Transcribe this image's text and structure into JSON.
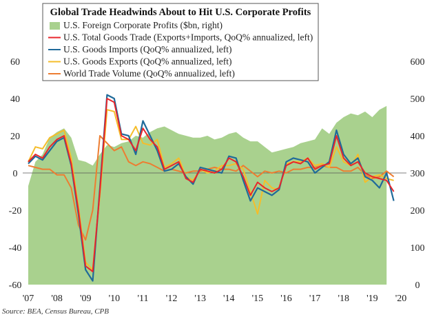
{
  "chart_data": {
    "type": "line",
    "title": "Global Trade Headwinds About to Hit U.S. Corporate Profits",
    "source": "Source: BEA, Census Bureau, CPB",
    "x_tick_labels": [
      "'07",
      "'08",
      "'09",
      "'10",
      "'11",
      "'12",
      "'13",
      "'14",
      "'15",
      "'16",
      "'17",
      "'18",
      "'19",
      "'20"
    ],
    "xlim": [
      2007.0,
      2020.0
    ],
    "y_left": {
      "ticks": [
        "60",
        "40",
        "20",
        "0",
        "-20",
        "-40",
        "-60"
      ],
      "lim": [
        -60,
        60
      ]
    },
    "y_right": {
      "ticks": [
        "600",
        "500",
        "400",
        "300",
        "200",
        "100",
        "0"
      ],
      "lim": [
        0,
        600
      ]
    },
    "colors": {
      "profits": "#a9d18e",
      "total_trade": "#e8262b",
      "imports": "#1f6a9a",
      "exports": "#f5bd2a",
      "world_trade": "#ed7d31"
    },
    "series": [
      {
        "key": "profits",
        "name": "U.S. Foreign Corporate Profits ($bn, right)",
        "kind": "area",
        "axis": "right",
        "x": [
          2007.0,
          2007.25,
          2007.5,
          2007.75,
          2008.0,
          2008.25,
          2008.5,
          2008.75,
          2009.0,
          2009.25,
          2009.5,
          2009.75,
          2010.0,
          2010.25,
          2010.5,
          2010.75,
          2011.0,
          2011.25,
          2011.5,
          2011.75,
          2012.0,
          2012.25,
          2012.5,
          2012.75,
          2013.0,
          2013.25,
          2013.5,
          2013.75,
          2014.0,
          2014.25,
          2014.5,
          2014.75,
          2015.0,
          2015.25,
          2015.5,
          2015.75,
          2016.0,
          2016.25,
          2016.5,
          2016.75,
          2017.0,
          2017.25,
          2017.5,
          2017.75,
          2018.0,
          2018.25,
          2018.5,
          2018.75,
          2019.0,
          2019.25,
          2019.5
        ],
        "values": [
          265,
          330,
          350,
          395,
          410,
          420,
          395,
          335,
          330,
          320,
          350,
          375,
          370,
          380,
          385,
          400,
          395,
          410,
          420,
          425,
          415,
          405,
          400,
          395,
          395,
          400,
          390,
          395,
          405,
          410,
          395,
          385,
          385,
          370,
          355,
          360,
          365,
          370,
          380,
          385,
          390,
          420,
          405,
          435,
          450,
          460,
          455,
          465,
          450,
          470,
          480
        ]
      },
      {
        "key": "total_trade",
        "name": "U.S. Total Goods Trade (Exports+Imports, QoQ% annualized, left)",
        "kind": "line",
        "axis": "left",
        "x": [
          2007.0,
          2007.25,
          2007.5,
          2007.75,
          2008.0,
          2008.25,
          2008.5,
          2008.75,
          2009.0,
          2009.25,
          2009.5,
          2009.75,
          2010.0,
          2010.25,
          2010.5,
          2010.75,
          2011.0,
          2011.25,
          2011.5,
          2011.75,
          2012.0,
          2012.25,
          2012.5,
          2012.75,
          2013.0,
          2013.25,
          2013.5,
          2013.75,
          2014.0,
          2014.25,
          2014.5,
          2014.75,
          2015.0,
          2015.25,
          2015.5,
          2015.75,
          2016.0,
          2016.25,
          2016.5,
          2016.75,
          2017.0,
          2017.25,
          2017.5,
          2017.75,
          2018.0,
          2018.25,
          2018.5,
          2018.75,
          2019.0,
          2019.25,
          2019.5,
          2019.75
        ],
        "values": [
          6,
          10,
          8,
          14,
          18,
          20,
          5,
          -20,
          -50,
          -53,
          -10,
          40,
          38,
          20,
          18,
          12,
          24,
          18,
          14,
          2,
          4,
          6,
          -3,
          -5,
          2,
          1,
          0,
          2,
          8,
          6,
          -2,
          -12,
          -5,
          -8,
          -10,
          -8,
          4,
          6,
          5,
          8,
          2,
          4,
          5,
          20,
          8,
          4,
          6,
          0,
          -2,
          -3,
          -4,
          -10
        ]
      },
      {
        "key": "imports",
        "name": "U.S. Goods Imports (QoQ% annualized, left)",
        "kind": "line",
        "axis": "left",
        "x": [
          2007.0,
          2007.25,
          2007.5,
          2007.75,
          2008.0,
          2008.25,
          2008.5,
          2008.75,
          2009.0,
          2009.25,
          2009.5,
          2009.75,
          2010.0,
          2010.25,
          2010.5,
          2010.75,
          2011.0,
          2011.25,
          2011.5,
          2011.75,
          2012.0,
          2012.25,
          2012.5,
          2012.75,
          2013.0,
          2013.25,
          2013.5,
          2013.75,
          2014.0,
          2014.25,
          2014.5,
          2014.75,
          2015.0,
          2015.25,
          2015.5,
          2015.75,
          2016.0,
          2016.25,
          2016.5,
          2016.75,
          2017.0,
          2017.25,
          2017.5,
          2017.75,
          2018.0,
          2018.25,
          2018.5,
          2018.75,
          2019.0,
          2019.25,
          2019.5,
          2019.75
        ],
        "values": [
          5,
          9,
          7,
          12,
          17,
          19,
          4,
          -22,
          -52,
          -58,
          -8,
          42,
          40,
          21,
          20,
          10,
          28,
          20,
          12,
          1,
          2,
          5,
          -2,
          -6,
          3,
          2,
          1,
          0,
          9,
          8,
          -4,
          -15,
          -8,
          -10,
          -12,
          -9,
          6,
          8,
          7,
          6,
          0,
          3,
          6,
          23,
          10,
          5,
          8,
          -2,
          -4,
          -8,
          0,
          -15
        ]
      },
      {
        "key": "exports",
        "name": "U.S. Goods Exports (QoQ% annualized, left)",
        "kind": "line",
        "axis": "left",
        "x": [
          2007.0,
          2007.25,
          2007.5,
          2007.75,
          2008.0,
          2008.25,
          2008.5,
          2008.75,
          2009.0,
          2009.25,
          2009.5,
          2009.75,
          2010.0,
          2010.25,
          2010.5,
          2010.75,
          2011.0,
          2011.25,
          2011.5,
          2011.75,
          2012.0,
          2012.25,
          2012.5,
          2012.75,
          2013.0,
          2013.25,
          2013.5,
          2013.75,
          2014.0,
          2014.25,
          2014.5,
          2014.75,
          2015.0,
          2015.25,
          2015.5,
          2015.75,
          2016.0,
          2016.25,
          2016.5,
          2016.75,
          2017.0,
          2017.25,
          2017.5,
          2017.75,
          2018.0,
          2018.25,
          2018.5,
          2018.75,
          2019.0,
          2019.25,
          2019.5,
          2019.75
        ],
        "values": [
          6,
          14,
          13,
          19,
          21,
          23,
          8,
          -18,
          -48,
          -52,
          -12,
          34,
          33,
          18,
          18,
          25,
          16,
          15,
          18,
          3,
          5,
          8,
          -2,
          -4,
          2,
          0,
          1,
          4,
          4,
          5,
          2,
          -10,
          -22,
          -4,
          -8,
          -9,
          5,
          6,
          6,
          8,
          4,
          5,
          3,
          14,
          6,
          4,
          10,
          -5,
          -2,
          -1,
          -3,
          -4
        ]
      },
      {
        "key": "world_trade",
        "name": "World Trade Volume (QoQ% annualized, left)",
        "kind": "line",
        "axis": "left",
        "x": [
          2007.0,
          2007.25,
          2007.5,
          2007.75,
          2008.0,
          2008.25,
          2008.5,
          2008.75,
          2009.0,
          2009.25,
          2009.5,
          2009.75,
          2010.0,
          2010.25,
          2010.5,
          2010.75,
          2011.0,
          2011.25,
          2011.5,
          2011.75,
          2012.0,
          2012.25,
          2012.5,
          2012.75,
          2013.0,
          2013.25,
          2013.5,
          2013.75,
          2014.0,
          2014.25,
          2014.5,
          2014.75,
          2015.0,
          2015.25,
          2015.5,
          2015.75,
          2016.0,
          2016.25,
          2016.5,
          2016.75,
          2017.0,
          2017.25,
          2017.5,
          2017.75,
          2018.0,
          2018.25,
          2018.5,
          2018.75,
          2019.0,
          2019.25,
          2019.5,
          2019.75
        ],
        "values": [
          4,
          3,
          2,
          2,
          -1,
          -1,
          -8,
          -28,
          -36,
          -20,
          20,
          16,
          12,
          14,
          6,
          4,
          6,
          5,
          3,
          1,
          2,
          1,
          0,
          1,
          1,
          2,
          3,
          2,
          2,
          1,
          4,
          1,
          -2,
          1,
          0,
          1,
          0,
          2,
          2,
          3,
          3,
          4,
          3,
          3,
          1,
          1,
          3,
          -1,
          -3,
          -2,
          1,
          -2
        ]
      }
    ]
  }
}
